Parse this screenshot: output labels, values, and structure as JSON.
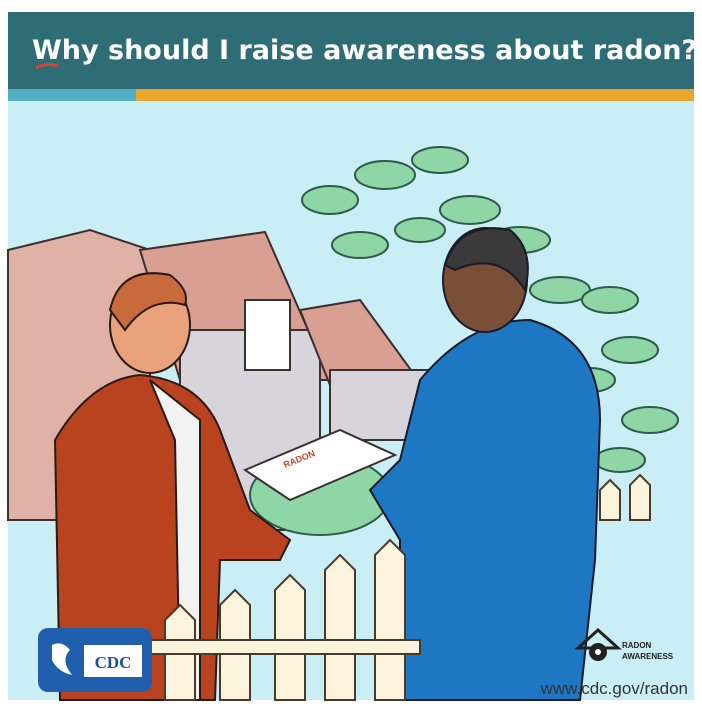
{
  "header": {
    "title": "Why should I raise awareness about radon?"
  },
  "illustration": {
    "paper_label": "RADON"
  },
  "footer": {
    "logo": "CDC",
    "badge": [
      "RADON",
      "AWARENESS"
    ],
    "url": "www.cdc.gov/radon"
  }
}
